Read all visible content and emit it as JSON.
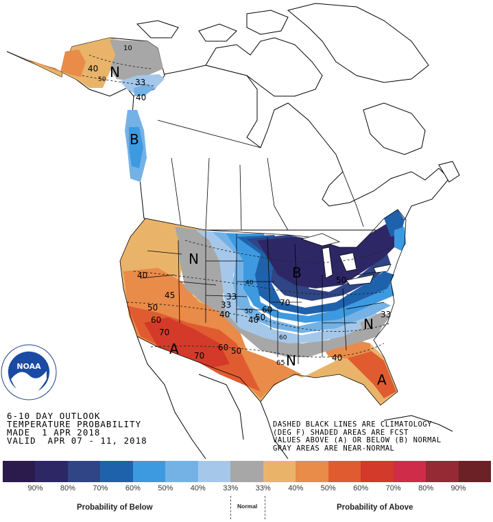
{
  "outlook_title": {
    "line1": "6-10 DAY OUTLOOK",
    "line2": "TEMPERATURE PROBABILITY",
    "line3": "MADE  1 APR 2018",
    "line4": "VALID  APR 07 - 11, 2018"
  },
  "notes": {
    "line1": "DASHED BLACK LINES ARE CLIMATOLOGY",
    "line2": "(DEG F) SHADED AREAS ARE FCST",
    "line3": "VALUES ABOVE (A) OR BELOW (B) NORMAL",
    "line4": "GRAY AREAS ARE NEAR-NORMAL"
  },
  "logo": {
    "text": "NOAA",
    "ring_text": "NATIONAL OCEANIC AND ATMOSPHERIC ADMINISTRATION · U.S. DEPARTMENT OF COMMERCE"
  },
  "legend": {
    "colors": [
      "#2a1b4c",
      "#2e2766",
      "#2f4585",
      "#1f62ac",
      "#3e9ae0",
      "#74b2e6",
      "#a5c8ea",
      "#a7a7a7",
      "#e9b46a",
      "#e98b49",
      "#e05c30",
      "#d33a2a",
      "#cf2c49",
      "#952a34",
      "#6b2126"
    ],
    "ticks": [
      "90%",
      "80%",
      "70%",
      "60%",
      "50%",
      "40%",
      "33%",
      "33%",
      "40%",
      "50%",
      "60%",
      "70%",
      "80%",
      "90%"
    ],
    "below_label": "Probability of Below",
    "normal_label": "Normal",
    "above_label": "Probability of Above"
  },
  "regions": {
    "alaska_N": "N",
    "bc_B": "B",
    "plains_N": "N",
    "east_B": "B",
    "southwest_A": "A",
    "southeast_N": "N",
    "gulf_N": "N",
    "florida_A": "A"
  },
  "contour_labels": {
    "ak_10": "10",
    "ak_40": "40",
    "ak_50": "50",
    "ak_33": "33",
    "ak_40b": "40",
    "w_40": "40",
    "w_45": "45",
    "w_50": "50",
    "w_60": "60",
    "w_70": "70",
    "sw_70": "70",
    "p_33": "33",
    "p_33b": "33",
    "p_40": "40",
    "p_40b": "40",
    "c_50": "50",
    "c_60": "60",
    "c_50b": "50",
    "c_60b": "60",
    "c_50c": "50",
    "e_70": "70",
    "e_50": "50",
    "e_40": "40",
    "e_60": "60",
    "s_65": "65",
    "s_40": "40",
    "s_33": "33"
  }
}
